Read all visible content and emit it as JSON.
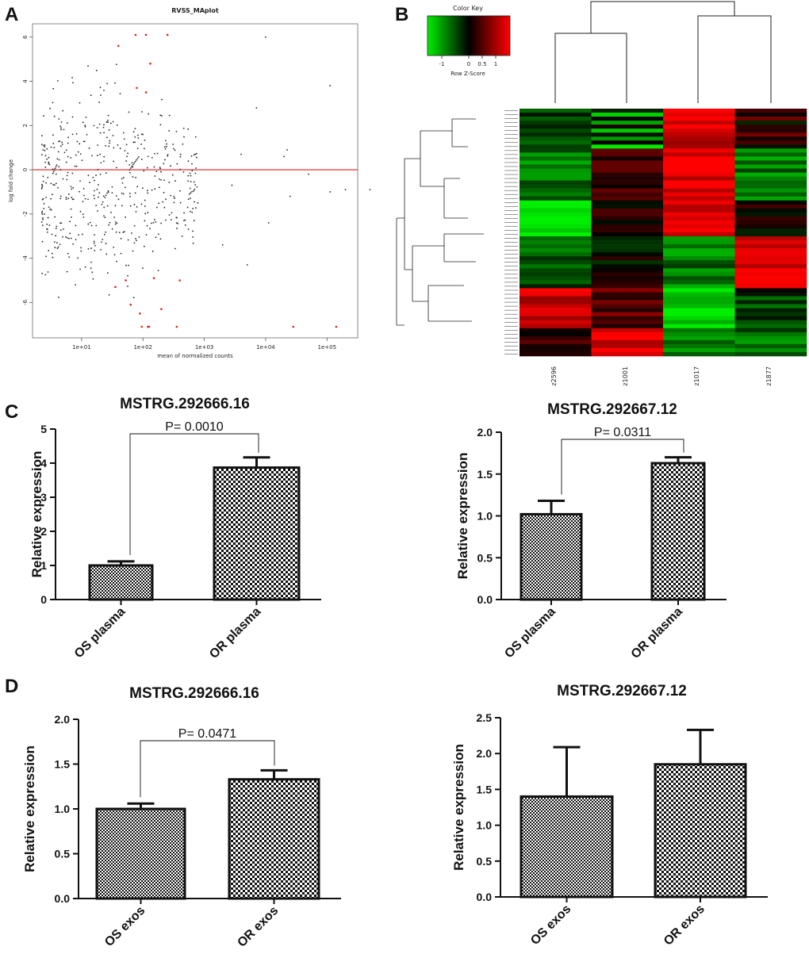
{
  "panels": {
    "a": "A",
    "b": "B",
    "c": "C",
    "d": "D"
  },
  "colors": {
    "points": "#222222",
    "sig_points": "#e02020",
    "zero_line": "#e02020",
    "green": "#00ee00",
    "black": "#000000",
    "red": "#ff0000",
    "bar_stroke": "#111111"
  },
  "ma_plot": {
    "title": "RVSS_MAplot",
    "xlabel": "mean of normalized counts",
    "ylabel": "log fold change",
    "x_ticks": [
      "1e+01",
      "1e+02",
      "1e+03",
      "1e+04",
      "1e+05"
    ],
    "y_ticks": [
      "6",
      "4",
      "2",
      "0",
      "-2",
      "-4",
      "-6"
    ],
    "x_log_range": [
      0.2,
      5.5
    ],
    "y_range": [
      -7.6,
      6.6
    ],
    "sig_points": [
      [
        1.88,
        6.1
      ],
      [
        2.05,
        6.1
      ],
      [
        2.4,
        6.1
      ],
      [
        1.6,
        5.6
      ],
      [
        2.12,
        4.8
      ],
      [
        1.9,
        3.7
      ],
      [
        2.05,
        3.5
      ],
      [
        1.72,
        -5.0
      ],
      [
        2.18,
        -4.9
      ],
      [
        1.55,
        -5.3
      ],
      [
        2.6,
        -5.0
      ],
      [
        1.8,
        -6.1
      ],
      [
        2.3,
        -6.3
      ],
      [
        1.95,
        -6.5
      ],
      [
        1.98,
        -7.1
      ],
      [
        2.08,
        -7.1
      ],
      [
        2.1,
        -7.1
      ],
      [
        2.55,
        -7.1
      ],
      [
        4.45,
        -7.1
      ],
      [
        5.15,
        -7.1
      ]
    ],
    "far_points": [
      [
        4.0,
        6.0
      ],
      [
        5.05,
        3.8
      ],
      [
        3.85,
        2.8
      ],
      [
        3.6,
        0.7
      ],
      [
        4.3,
        0.6
      ],
      [
        4.35,
        0.9
      ],
      [
        4.7,
        -0.2
      ],
      [
        4.4,
        -1.2
      ],
      [
        5.3,
        -0.9
      ],
      [
        5.05,
        -1.0
      ],
      [
        5.7,
        -0.9
      ],
      [
        3.45,
        -0.7
      ],
      [
        3.3,
        -3.4
      ],
      [
        3.7,
        -4.3
      ],
      [
        4.05,
        -2.4
      ]
    ]
  },
  "heatmap": {
    "color_key_title": "Color Key",
    "color_key_xlabel": "Row Z-Score",
    "color_key_ticks": [
      "-1",
      "0",
      "0.5",
      "1"
    ],
    "columns": [
      "z2596",
      "z1001",
      "z1017",
      "z1877"
    ],
    "row_count": 62
  },
  "chart_data": [
    {
      "type": "bar",
      "panel": "C",
      "title": "MSTRG.292666.16",
      "ylabel": "Relative expression",
      "categories": [
        "OS plasma",
        "OR plasma"
      ],
      "values": [
        1.0,
        3.87
      ],
      "errors": [
        0.12,
        0.3
      ],
      "ylim": [
        0,
        5
      ],
      "yticks": [
        "0",
        "1",
        "2",
        "3",
        "4",
        "5"
      ],
      "annotation": "P= 0.0010"
    },
    {
      "type": "bar",
      "panel": "C",
      "title": "MSTRG.292667.12",
      "ylabel": "Relative expression",
      "categories": [
        "OS plasma",
        "OR plasma"
      ],
      "values": [
        1.02,
        1.63
      ],
      "errors": [
        0.16,
        0.07
      ],
      "ylim": [
        0,
        2
      ],
      "yticks": [
        "0.0",
        "0.5",
        "1.0",
        "1.5",
        "2.0"
      ],
      "annotation": "P= 0.0311"
    },
    {
      "type": "bar",
      "panel": "D",
      "title": "MSTRG.292666.16",
      "ylabel": "Relative expression",
      "categories": [
        "OS exos",
        "OR exos"
      ],
      "values": [
        1.0,
        1.33
      ],
      "errors": [
        0.06,
        0.1
      ],
      "ylim": [
        0,
        2
      ],
      "yticks": [
        "0.0",
        "0.5",
        "1.0",
        "1.5",
        "2.0"
      ],
      "annotation": "P= 0.0471"
    },
    {
      "type": "bar",
      "panel": "D",
      "title": "MSTRG.292667.12",
      "ylabel": "Relative expression",
      "categories": [
        "OS exos",
        "OR exos"
      ],
      "values": [
        1.4,
        1.85
      ],
      "errors": [
        0.69,
        0.48
      ],
      "ylim": [
        0,
        2.5
      ],
      "yticks": [
        "0.0",
        "0.5",
        "1.0",
        "1.5",
        "2.0",
        "2.5"
      ],
      "annotation": ""
    }
  ]
}
